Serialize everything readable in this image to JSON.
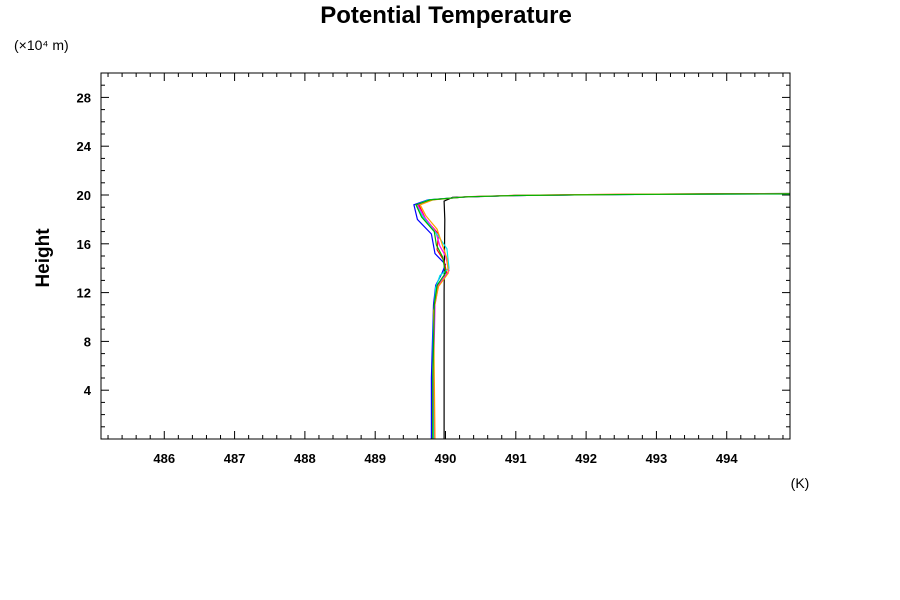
{
  "chart_data": {
    "type": "line",
    "title": "Potential Temperature",
    "ylabel": "Height",
    "y_unit_label": "(×10⁴ m)",
    "x_unit_label": "(K)",
    "xlim": [
      485.1,
      494.9
    ],
    "ylim": [
      0,
      30
    ],
    "xticks": [
      486,
      487,
      488,
      489,
      490,
      491,
      492,
      493,
      494
    ],
    "yticks": [
      4,
      8,
      12,
      16,
      20,
      24,
      28
    ],
    "grid": false,
    "legend": "none",
    "series": [
      {
        "color": "#000000",
        "points": [
          [
            489.98,
            0
          ],
          [
            489.98,
            12
          ],
          [
            489.99,
            18
          ],
          [
            489.98,
            19.5
          ],
          [
            490.1,
            19.8
          ],
          [
            491,
            19.96
          ],
          [
            492,
            20.02
          ],
          [
            493,
            20.07
          ],
          [
            494,
            20.1
          ],
          [
            494.9,
            20.12
          ]
        ]
      },
      {
        "color": "#0000ff",
        "points": [
          [
            489.8,
            0
          ],
          [
            489.8,
            5
          ],
          [
            489.83,
            11
          ],
          [
            489.86,
            12.6
          ],
          [
            489.95,
            13.6
          ],
          [
            490.0,
            14.3
          ],
          [
            489.85,
            15.2
          ],
          [
            489.8,
            16.8
          ],
          [
            489.6,
            18
          ],
          [
            489.55,
            19.2
          ],
          [
            489.75,
            19.6
          ],
          [
            490.3,
            19.85
          ],
          [
            491,
            19.96
          ],
          [
            492,
            20.02
          ],
          [
            493,
            20.06
          ],
          [
            494,
            20.09
          ],
          [
            494.9,
            20.1
          ]
        ]
      },
      {
        "color": "#ff0000",
        "points": [
          [
            489.82,
            0
          ],
          [
            489.82,
            5
          ],
          [
            489.84,
            11
          ],
          [
            489.88,
            12.5
          ],
          [
            490.02,
            13.5
          ],
          [
            489.98,
            14.6
          ],
          [
            489.88,
            15.5
          ],
          [
            489.9,
            16.8
          ],
          [
            489.72,
            18
          ],
          [
            489.62,
            19.2
          ],
          [
            489.78,
            19.6
          ],
          [
            490.3,
            19.85
          ],
          [
            491,
            19.97
          ],
          [
            492,
            20.03
          ],
          [
            493,
            20.07
          ],
          [
            494,
            20.09
          ],
          [
            494.9,
            20.1
          ]
        ]
      },
      {
        "color": "#ff00ff",
        "points": [
          [
            489.84,
            0
          ],
          [
            489.83,
            5
          ],
          [
            489.85,
            11
          ],
          [
            489.9,
            12.6
          ],
          [
            490.05,
            13.8
          ],
          [
            490.0,
            15.0
          ],
          [
            489.92,
            15.8
          ],
          [
            489.86,
            17
          ],
          [
            489.7,
            18.2
          ],
          [
            489.6,
            19.2
          ],
          [
            489.8,
            19.6
          ],
          [
            490.3,
            19.86
          ],
          [
            491,
            19.96
          ],
          [
            492,
            20.02
          ],
          [
            493,
            20.06
          ],
          [
            494,
            20.08
          ],
          [
            494.9,
            20.1
          ]
        ]
      },
      {
        "color": "#00e5e5",
        "points": [
          [
            489.83,
            0
          ],
          [
            489.82,
            5
          ],
          [
            489.83,
            10
          ],
          [
            489.86,
            12.4
          ],
          [
            489.92,
            13.4
          ],
          [
            490.05,
            14.0
          ],
          [
            490.02,
            15.6
          ],
          [
            489.9,
            16.6
          ],
          [
            489.68,
            18.2
          ],
          [
            489.58,
            19.2
          ],
          [
            489.76,
            19.6
          ],
          [
            490.3,
            19.85
          ],
          [
            491,
            19.96
          ],
          [
            492,
            20.02
          ],
          [
            493,
            20.05
          ],
          [
            494,
            20.07
          ],
          [
            494.9,
            20.08
          ]
        ]
      },
      {
        "color": "#ffa000",
        "points": [
          [
            489.85,
            0
          ],
          [
            489.84,
            5
          ],
          [
            489.83,
            10.5
          ],
          [
            489.9,
            12.5
          ],
          [
            490.04,
            13.6
          ],
          [
            490.02,
            14.8
          ],
          [
            489.95,
            16
          ],
          [
            489.88,
            17.2
          ],
          [
            489.72,
            18.3
          ],
          [
            489.64,
            19.2
          ],
          [
            489.82,
            19.6
          ],
          [
            490.3,
            19.86
          ],
          [
            491,
            19.97
          ],
          [
            492,
            20.03
          ],
          [
            493,
            20.07
          ],
          [
            494,
            20.09
          ],
          [
            494.9,
            20.1
          ]
        ]
      },
      {
        "color": "#00b000",
        "points": [
          [
            489.82,
            0
          ],
          [
            489.82,
            5
          ],
          [
            489.84,
            11
          ],
          [
            489.88,
            12.6
          ],
          [
            490.0,
            13.6
          ],
          [
            489.96,
            14.9
          ],
          [
            489.87,
            15.9
          ],
          [
            489.84,
            17
          ],
          [
            489.66,
            18.2
          ],
          [
            489.58,
            19.2
          ],
          [
            489.78,
            19.6
          ],
          [
            490.3,
            19.85
          ],
          [
            491,
            19.96
          ],
          [
            492,
            20.02
          ],
          [
            493,
            20.06
          ],
          [
            494,
            20.08
          ],
          [
            494.9,
            20.09
          ]
        ]
      }
    ]
  }
}
